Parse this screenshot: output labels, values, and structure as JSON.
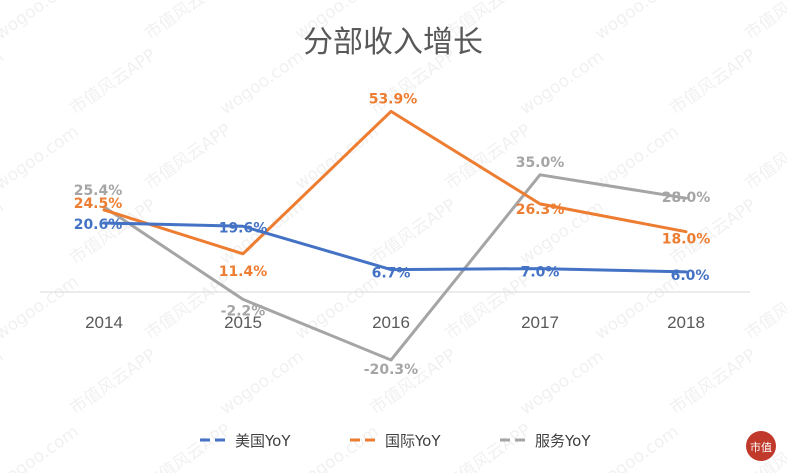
{
  "watermark": {
    "texts": [
      "wogoo.com",
      "市值风云APP"
    ],
    "logo_text": "市值"
  },
  "chart_data": {
    "type": "line",
    "title": "分部收入增长",
    "categories": [
      "2014",
      "2015",
      "2016",
      "2017",
      "2018"
    ],
    "series": [
      {
        "name": "美国YoY",
        "color": "#4472C4",
        "dash": "solid",
        "values": [
          20.6,
          19.6,
          6.7,
          7.0,
          6.0
        ],
        "labels": [
          "20.6%",
          "19.6%",
          "6.7%",
          "7.0%",
          "6.0%"
        ]
      },
      {
        "name": "国际YoY",
        "color": "#ED7D31",
        "dash": "solid",
        "values": [
          24.5,
          11.4,
          53.9,
          26.3,
          18.0
        ],
        "labels": [
          "24.5%",
          "11.4%",
          "53.9%",
          "26.3%",
          "18.0%"
        ]
      },
      {
        "name": "服务YoY",
        "color": "#A5A5A5",
        "dash": "solid",
        "values": [
          25.4,
          -2.2,
          -20.3,
          35.0,
          28.0
        ],
        "labels": [
          "25.4%",
          "-2.2%",
          "-20.3%",
          "35.0%",
          "28.0%"
        ]
      }
    ],
    "ylim": [
      -25,
      60
    ],
    "grid": false,
    "legend": "bottom"
  }
}
